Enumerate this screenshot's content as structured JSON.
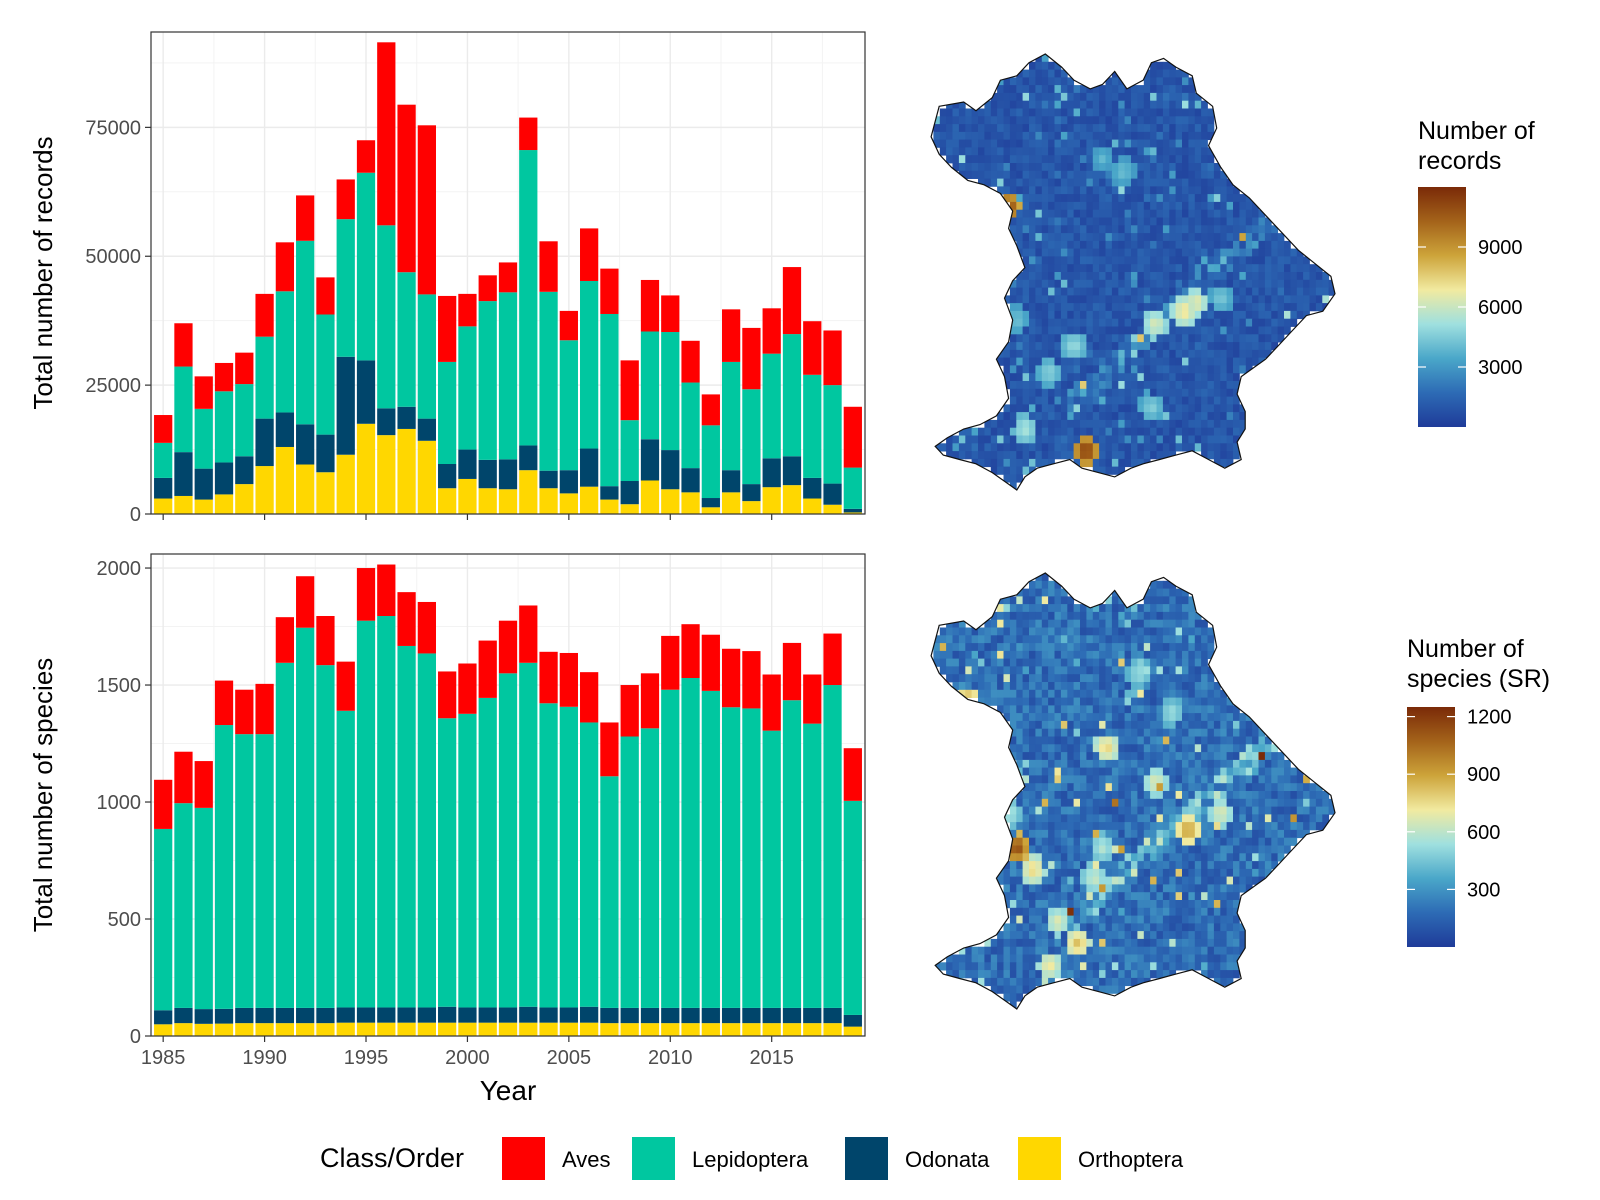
{
  "colors": {
    "Aves": "#ff0000",
    "Lepidoptera": "#00c7a0",
    "Odonata": "#00456b",
    "Orthoptera": "#ffd700",
    "panel_border": "#333333",
    "grid": "#ebebeb",
    "map_outline": "#111111",
    "colorscale": [
      "#1f3b99",
      "#2d6bb5",
      "#4aa7c9",
      "#9fe0df",
      "#f1eaa0",
      "#cda43a",
      "#a4631a",
      "#7a2a08"
    ]
  },
  "x_axis": {
    "label": "Year",
    "min": 1985,
    "max": 2019,
    "ticks": [
      1985,
      1990,
      1995,
      2000,
      2005,
      2010,
      2015
    ],
    "tick_labels": [
      "1985",
      "1990",
      "1995",
      "2000",
      "2005",
      "2010",
      "2015"
    ]
  },
  "legend": {
    "title": "Class/Order",
    "items": [
      "Aves",
      "Lepidoptera",
      "Odonata",
      "Orthoptera"
    ]
  },
  "chart_data": [
    {
      "type": "bar",
      "stacked": true,
      "title": "",
      "xlabel": "",
      "ylabel": "Total number of records",
      "ylim": [
        0,
        93500
      ],
      "yticks": [
        0,
        25000,
        50000,
        75000
      ],
      "ytick_labels": [
        "0",
        "25000",
        "50000",
        "75000"
      ],
      "categories": [
        1985,
        1986,
        1987,
        1988,
        1989,
        1990,
        1991,
        1992,
        1993,
        1994,
        1995,
        1996,
        1997,
        1998,
        1999,
        2000,
        2001,
        2002,
        2003,
        2004,
        2005,
        2006,
        2007,
        2008,
        2009,
        2010,
        2011,
        2012,
        2013,
        2014,
        2015,
        2016,
        2017,
        2018,
        2019
      ],
      "series": [
        {
          "name": "Orthoptera",
          "values": [
            3000,
            3500,
            2800,
            3800,
            5800,
            9300,
            13000,
            9600,
            8100,
            11500,
            17500,
            15300,
            16500,
            14200,
            5000,
            6800,
            5000,
            4800,
            8500,
            5000,
            4000,
            5300,
            2800,
            1900,
            6500,
            4800,
            4200,
            1300,
            4200,
            2500,
            5200,
            5600,
            3000,
            1800,
            300
          ]
        },
        {
          "name": "Odonata",
          "values": [
            4000,
            8500,
            6000,
            6200,
            5400,
            9200,
            6700,
            7800,
            7300,
            19000,
            12300,
            5200,
            4300,
            4300,
            4700,
            5700,
            5500,
            5800,
            4800,
            3400,
            4500,
            7400,
            2600,
            4500,
            8000,
            7600,
            4700,
            1800,
            4300,
            3300,
            5600,
            5600,
            4000,
            4100,
            700
          ]
        },
        {
          "name": "Lepidoptera",
          "values": [
            6800,
            16600,
            11600,
            13800,
            14000,
            15900,
            23500,
            35600,
            23300,
            26700,
            36400,
            35500,
            26100,
            24100,
            19800,
            23900,
            30800,
            32400,
            57300,
            34700,
            25200,
            32500,
            33400,
            11800,
            20900,
            22900,
            16600,
            14100,
            21000,
            18400,
            20300,
            23700,
            20000,
            19100,
            8000
          ]
        },
        {
          "name": "Aves",
          "values": [
            5400,
            8400,
            6300,
            5500,
            6100,
            8300,
            9500,
            8800,
            7200,
            7700,
            6300,
            35500,
            32500,
            32800,
            12800,
            6300,
            5000,
            5800,
            6300,
            9800,
            5700,
            10200,
            8800,
            11600,
            10000,
            7100,
            8100,
            6000,
            10200,
            11900,
            8800,
            13000,
            10400,
            10600,
            11800
          ]
        }
      ]
    },
    {
      "type": "bar",
      "stacked": true,
      "title": "",
      "xlabel": "Year",
      "ylabel": "Total number of species",
      "ylim": [
        0,
        2060
      ],
      "yticks": [
        0,
        500,
        1000,
        1500,
        2000
      ],
      "ytick_labels": [
        "0",
        "500",
        "1000",
        "1500",
        "2000"
      ],
      "categories": [
        1985,
        1986,
        1987,
        1988,
        1989,
        1990,
        1991,
        1992,
        1993,
        1994,
        1995,
        1996,
        1997,
        1998,
        1999,
        2000,
        2001,
        2002,
        2003,
        2004,
        2005,
        2006,
        2007,
        2008,
        2009,
        2010,
        2011,
        2012,
        2013,
        2014,
        2015,
        2016,
        2017,
        2018,
        2019
      ],
      "series": [
        {
          "name": "Orthoptera",
          "values": [
            50,
            55,
            52,
            53,
            55,
            55,
            55,
            55,
            55,
            57,
            57,
            57,
            57,
            57,
            57,
            57,
            57,
            57,
            57,
            57,
            57,
            57,
            55,
            55,
            55,
            55,
            55,
            55,
            55,
            55,
            55,
            55,
            55,
            55,
            40
          ]
        },
        {
          "name": "Odonata",
          "values": [
            60,
            65,
            63,
            63,
            65,
            65,
            65,
            65,
            65,
            65,
            65,
            65,
            65,
            65,
            68,
            65,
            65,
            65,
            68,
            65,
            65,
            68,
            65,
            65,
            65,
            65,
            65,
            65,
            65,
            65,
            65,
            65,
            65,
            65,
            50
          ]
        },
        {
          "name": "Lepidoptera",
          "values": [
            775,
            875,
            860,
            1213,
            1170,
            1170,
            1475,
            1625,
            1465,
            1268,
            1653,
            1673,
            1545,
            1513,
            1233,
            1255,
            1323,
            1428,
            1470,
            1300,
            1285,
            1215,
            990,
            1160,
            1195,
            1360,
            1410,
            1355,
            1285,
            1280,
            1185,
            1315,
            1215,
            1380,
            915
          ]
        },
        {
          "name": "Aves",
          "values": [
            210,
            220,
            200,
            190,
            190,
            215,
            195,
            220,
            210,
            210,
            225,
            220,
            230,
            220,
            200,
            215,
            245,
            225,
            245,
            220,
            230,
            215,
            230,
            220,
            235,
            230,
            230,
            240,
            250,
            245,
            240,
            245,
            210,
            220,
            225
          ]
        }
      ]
    },
    {
      "type": "heatmap",
      "title": "",
      "legend_title": "Number of records",
      "colorbar_range": [
        0,
        12000
      ],
      "colorbar_ticks": [
        3000,
        6000,
        9000
      ],
      "colorbar_tick_labels": [
        "3000",
        "6000",
        "9000"
      ],
      "background_value": 800,
      "hotspots": [
        {
          "rx": 0.39,
          "ry": 0.91,
          "v": 12000
        },
        {
          "rx": 0.2,
          "ry": 0.35,
          "v": 11500
        },
        {
          "rx": 0.63,
          "ry": 0.59,
          "v": 7400
        },
        {
          "rx": 0.56,
          "ry": 0.62,
          "v": 6600
        },
        {
          "rx": 0.66,
          "ry": 0.57,
          "v": 6900
        },
        {
          "rx": 0.72,
          "ry": 0.56,
          "v": 4600
        },
        {
          "rx": 0.36,
          "ry": 0.67,
          "v": 5200
        },
        {
          "rx": 0.48,
          "ry": 0.27,
          "v": 4300
        },
        {
          "rx": 0.43,
          "ry": 0.24,
          "v": 4000
        },
        {
          "rx": 0.3,
          "ry": 0.73,
          "v": 4900
        },
        {
          "rx": 0.24,
          "ry": 0.86,
          "v": 5600
        },
        {
          "rx": 0.55,
          "ry": 0.81,
          "v": 4800
        },
        {
          "rx": 0.22,
          "ry": 0.61,
          "v": 4400
        }
      ]
    },
    {
      "type": "heatmap",
      "title": "",
      "legend_title": "Number of species (SR)",
      "colorbar_range": [
        0,
        1250
      ],
      "colorbar_ticks": [
        300,
        600,
        900,
        1200
      ],
      "colorbar_tick_labels": [
        "300",
        "600",
        "900",
        "1200"
      ],
      "background_value": 150,
      "hotspots": [
        {
          "rx": 0.22,
          "ry": 0.63,
          "v": 1200
        },
        {
          "rx": 0.1,
          "ry": 0.3,
          "v": 1000
        },
        {
          "rx": 0.44,
          "ry": 0.4,
          "v": 800
        },
        {
          "rx": 0.56,
          "ry": 0.48,
          "v": 700
        },
        {
          "rx": 0.64,
          "ry": 0.59,
          "v": 950
        },
        {
          "rx": 0.37,
          "ry": 0.85,
          "v": 850
        },
        {
          "rx": 0.32,
          "ry": 0.8,
          "v": 700
        },
        {
          "rx": 0.41,
          "ry": 0.7,
          "v": 650
        },
        {
          "rx": 0.26,
          "ry": 0.68,
          "v": 800
        },
        {
          "rx": 0.43,
          "ry": 0.63,
          "v": 600
        },
        {
          "rx": 0.6,
          "ry": 0.32,
          "v": 550
        },
        {
          "rx": 0.72,
          "ry": 0.55,
          "v": 700
        },
        {
          "rx": 0.3,
          "ry": 0.9,
          "v": 750
        },
        {
          "rx": 0.52,
          "ry": 0.23,
          "v": 550
        },
        {
          "rx": 0.2,
          "ry": 0.55,
          "v": 600
        }
      ]
    }
  ]
}
